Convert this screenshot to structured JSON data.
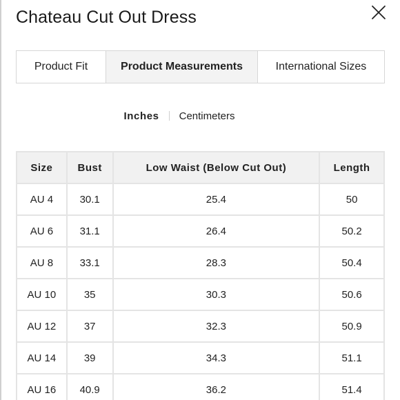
{
  "title": "Chateau Cut Out Dress",
  "tabs": [
    {
      "label": "Product Fit",
      "active": false
    },
    {
      "label": "Product Measurements",
      "active": true
    },
    {
      "label": "International Sizes",
      "active": false
    }
  ],
  "units": {
    "inches": "Inches",
    "centimeters": "Centimeters",
    "selected": "inches"
  },
  "table": {
    "headers": [
      "Size",
      "Bust",
      "Low Waist (Below Cut Out)",
      "Length"
    ],
    "rows": [
      [
        "AU 4",
        "30.1",
        "25.4",
        "50"
      ],
      [
        "AU 6",
        "31.1",
        "26.4",
        "50.2"
      ],
      [
        "AU 8",
        "33.1",
        "28.3",
        "50.4"
      ],
      [
        "AU 10",
        "35",
        "30.3",
        "50.6"
      ],
      [
        "AU 12",
        "37",
        "32.3",
        "50.9"
      ],
      [
        "AU 14",
        "39",
        "34.3",
        "51.1"
      ],
      [
        "AU 16",
        "40.9",
        "36.2",
        "51.4"
      ]
    ]
  },
  "icons": {
    "close": "close-icon"
  }
}
